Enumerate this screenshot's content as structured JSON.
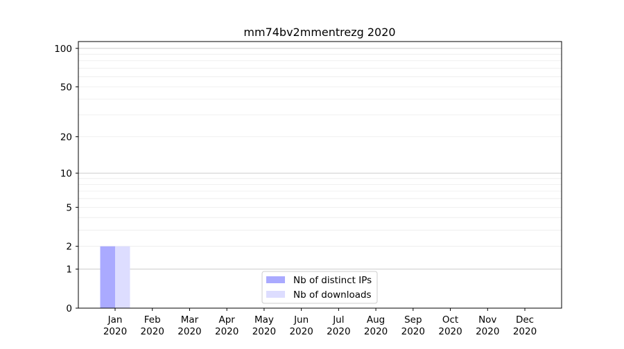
{
  "chart_data": {
    "type": "bar",
    "title": "mm74bv2mmentrezg 2020",
    "xlabel": "",
    "ylabel": "",
    "yscale": "log(y+1)",
    "ylim": [
      0,
      113
    ],
    "yticks": [
      0,
      1,
      2,
      5,
      10,
      20,
      50,
      100
    ],
    "categories": [
      "Jan\n2020",
      "Feb\n2020",
      "Mar\n2020",
      "Apr\n2020",
      "May\n2020",
      "Jun\n2020",
      "Jul\n2020",
      "Aug\n2020",
      "Sep\n2020",
      "Oct\n2020",
      "Nov\n2020",
      "Dec\n2020"
    ],
    "series": [
      {
        "name": "Nb of distinct IPs",
        "color": "#aaaaff",
        "values": [
          2,
          0,
          0,
          0,
          0,
          0,
          0,
          0,
          0,
          0,
          0,
          0
        ]
      },
      {
        "name": "Nb of downloads",
        "color": "#ddddff",
        "values": [
          2,
          0,
          0,
          0,
          0,
          0,
          0,
          0,
          0,
          0,
          0,
          0
        ]
      }
    ],
    "grid": true,
    "legend": "lower-center"
  }
}
